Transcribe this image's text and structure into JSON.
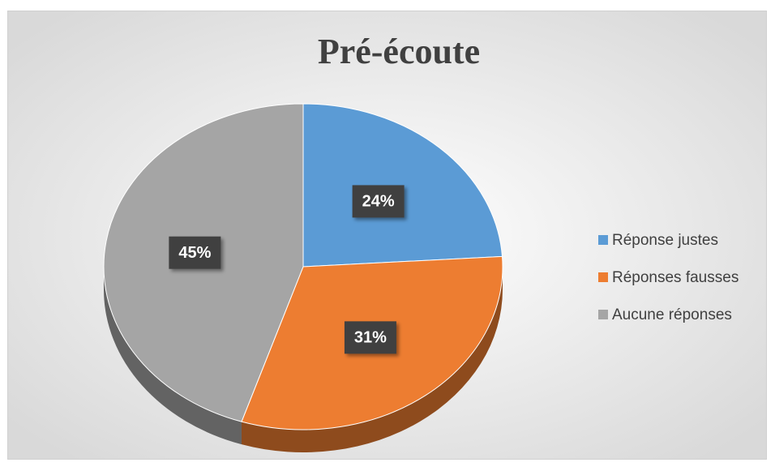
{
  "chart_data": {
    "type": "pie",
    "title": "Pré-écoute",
    "categories": [
      "Réponse justes",
      "Réponses fausses",
      "Aucune réponses"
    ],
    "values": [
      24,
      31,
      45
    ],
    "value_labels": [
      "24%",
      "31%",
      "45%"
    ],
    "colors": [
      "#5b9bd5",
      "#ed7d31",
      "#a5a5a5"
    ],
    "legend": "right"
  }
}
